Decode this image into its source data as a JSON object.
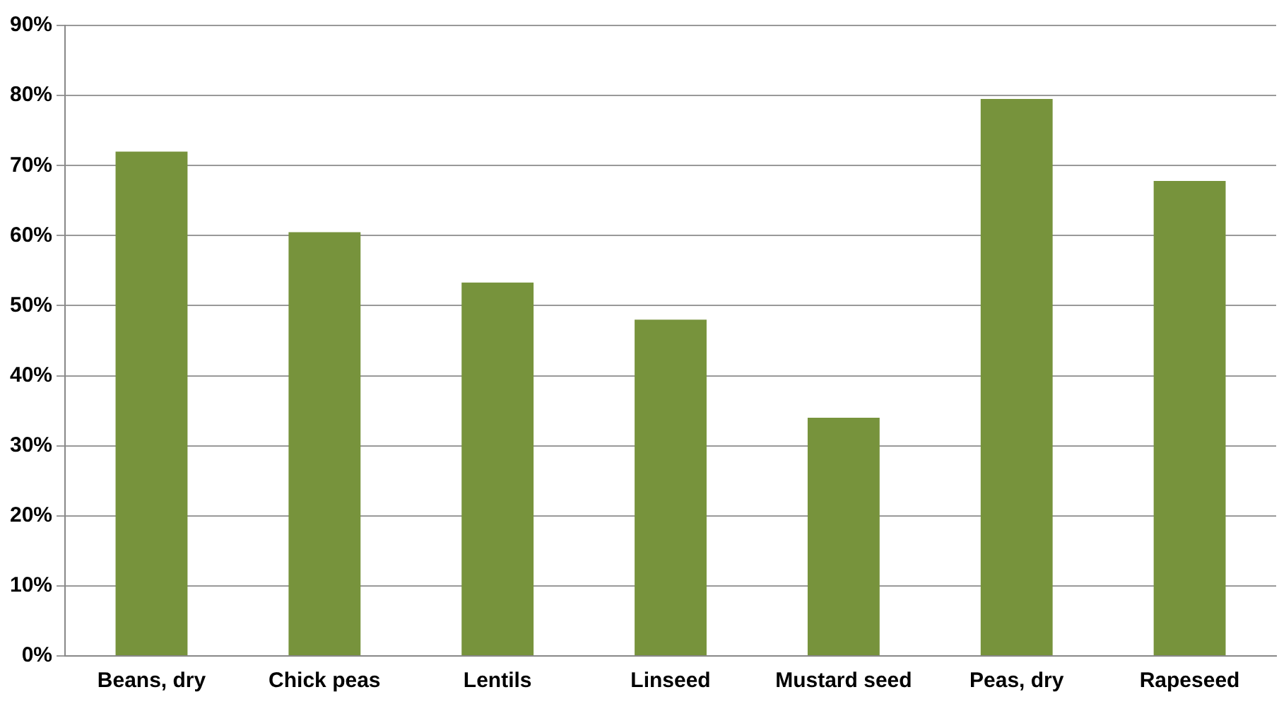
{
  "chart_data": {
    "type": "bar",
    "categories": [
      "Beans, dry",
      "Chick peas",
      "Lentils",
      "Linseed",
      "Mustard seed",
      "Peas, dry",
      "Rapeseed"
    ],
    "values": [
      72,
      60.5,
      53.3,
      48,
      34,
      79.5,
      67.8
    ],
    "color": "#77933c",
    "ylim": [
      0,
      90
    ],
    "yticks": [
      {
        "value": 0,
        "label": "0%"
      },
      {
        "value": 10,
        "label": "10%"
      },
      {
        "value": 20,
        "label": "20%"
      },
      {
        "value": 30,
        "label": "30%"
      },
      {
        "value": 40,
        "label": "40%"
      },
      {
        "value": 50,
        "label": "50%"
      },
      {
        "value": 60,
        "label": "60%"
      },
      {
        "value": 70,
        "label": "70%"
      },
      {
        "value": 80,
        "label": "80%"
      },
      {
        "value": 90,
        "label": "90%"
      }
    ],
    "grid": "y",
    "legend": false
  }
}
